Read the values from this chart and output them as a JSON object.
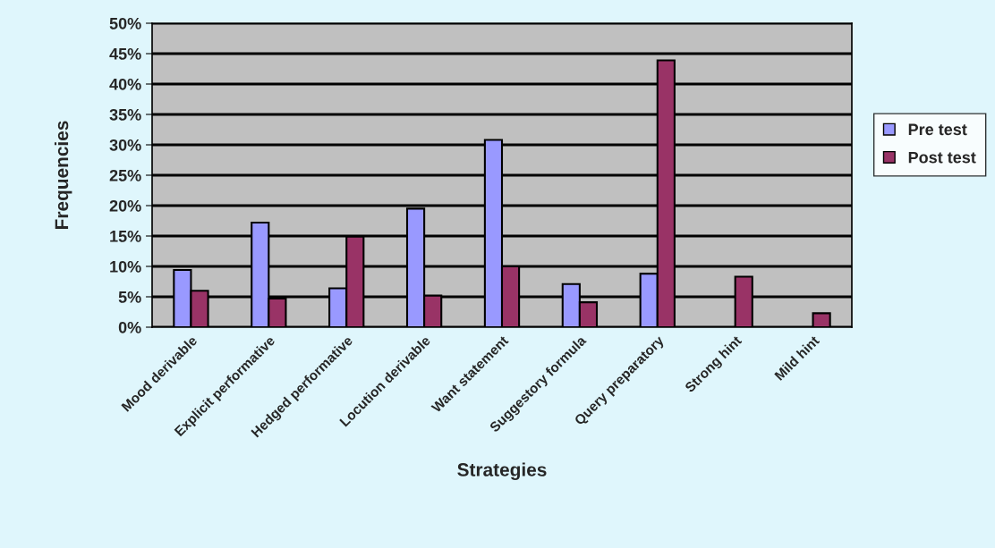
{
  "chart_data": {
    "type": "bar",
    "xlabel": "Strategies",
    "ylabel": "Frequencies",
    "categories": [
      "Mood derivable",
      "Explicit performative",
      "Hedged performative",
      "Locution derivable",
      "Want statement",
      "Suggestory formula",
      "Query preparatory",
      "Strong hint",
      "Mild hint"
    ],
    "series": [
      {
        "name": "Pre test",
        "color": "#9999ff",
        "values": [
          9.4,
          17.2,
          6.4,
          19.5,
          30.8,
          7.1,
          8.8,
          null,
          null
        ]
      },
      {
        "name": "Post test",
        "color": "#993366",
        "values": [
          6.0,
          4.7,
          14.9,
          5.2,
          10.0,
          4.1,
          43.9,
          8.3,
          2.3
        ]
      }
    ],
    "ylim": [
      0,
      50
    ],
    "yticks": [
      {
        "value": 0,
        "label": "0%"
      },
      {
        "value": 5,
        "label": "5%"
      },
      {
        "value": 10,
        "label": "10%"
      },
      {
        "value": 15,
        "label": "15%"
      },
      {
        "value": 20,
        "label": "20%"
      },
      {
        "value": 25,
        "label": "25%"
      },
      {
        "value": 30,
        "label": "30%"
      },
      {
        "value": 35,
        "label": "35%"
      },
      {
        "value": 40,
        "label": "40%"
      },
      {
        "value": 45,
        "label": "45%"
      },
      {
        "value": 50,
        "label": "50%"
      }
    ],
    "grid": "y",
    "legend": "right"
  }
}
